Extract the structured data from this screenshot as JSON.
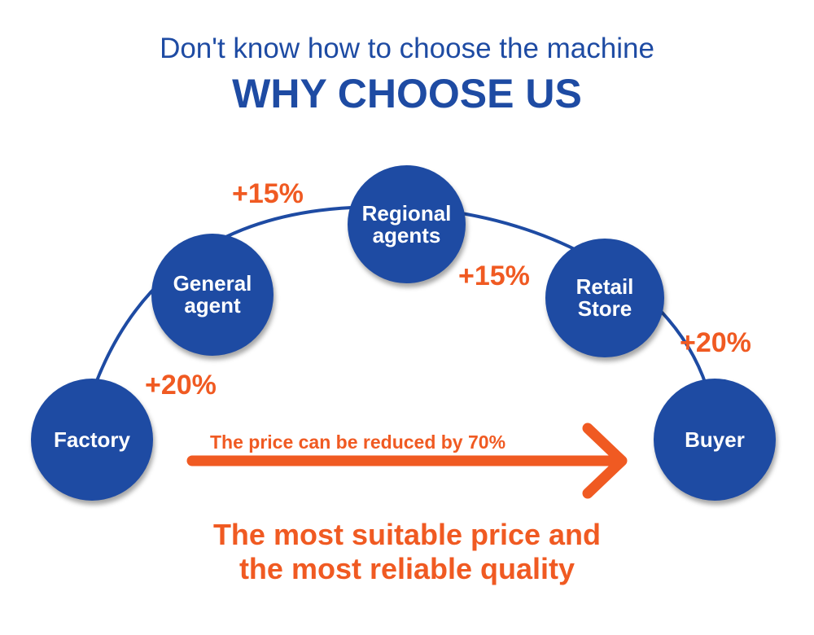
{
  "header": {
    "subtitle": "Don't know how to choose the machine",
    "title": "WHY CHOOSE US"
  },
  "nodes": [
    "Factory",
    "General agent",
    "Regional agents",
    "Retail Store",
    "Buyer"
  ],
  "markups": [
    "+20%",
    "+15%",
    "+15%",
    "+20%"
  ],
  "arrow_label": "The price can be reduced by 70%",
  "conclusion": {
    "line1": "The most suitable price and",
    "line2": "the most reliable quality"
  },
  "colors": {
    "blue": "#1e4ba3",
    "orange": "#f05a22"
  }
}
